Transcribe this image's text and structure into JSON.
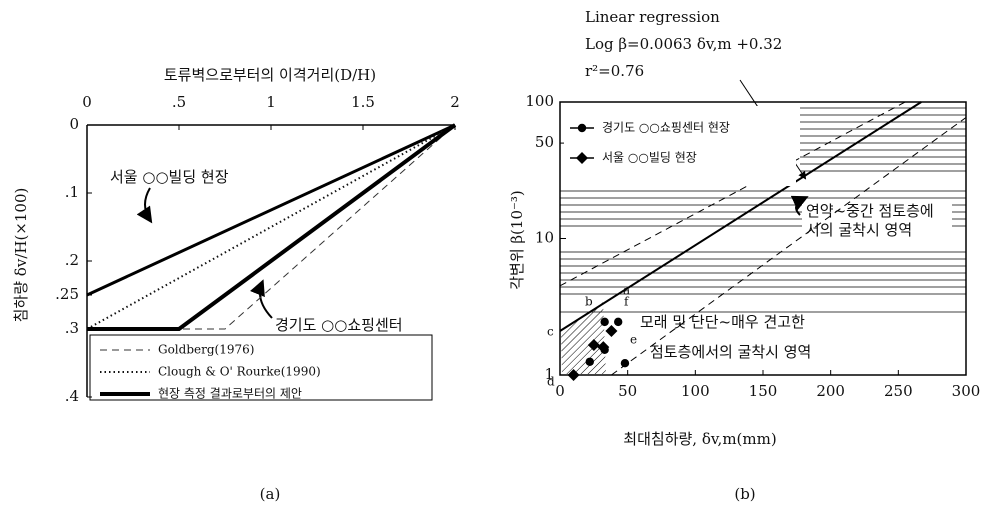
{
  "chart_data": [
    {
      "type": "line",
      "caption": "(a)",
      "xlabel": "토류벽으로부터의 이격거리(D/H)",
      "ylabel": "침하량 δv/H(×100)",
      "xlim": [
        0,
        2
      ],
      "ylim": [
        0,
        0.4
      ],
      "y_inverted": true,
      "xticks": [
        0,
        {
          "value": 0.5,
          "label": ".5"
        },
        1,
        1.5,
        2
      ],
      "yticks": [
        0,
        {
          "value": 0.1,
          "label": ".1"
        },
        {
          "value": 0.2,
          "label": ".2"
        },
        {
          "value": 0.25,
          "label": ".25"
        },
        {
          "value": 0.3,
          "label": ".3"
        },
        {
          "value": 0.4,
          "label": ".4"
        }
      ],
      "series": [
        {
          "name": "Goldberg(1976)",
          "color": "#333333",
          "style": "dashed",
          "x": [
            0,
            0.75,
            2
          ],
          "y": [
            0.3,
            0.3,
            0
          ]
        },
        {
          "name": "Clough & O' Rourke(1990)",
          "color": "#111111",
          "style": "dotted",
          "x": [
            0,
            2
          ],
          "y": [
            0.3,
            0
          ]
        },
        {
          "name": "현장 측정 결과로부터의 제안",
          "color": "#000000",
          "style": "thick",
          "x": [
            0,
            0.5,
            2
          ],
          "y": [
            0.3,
            0.3,
            0
          ]
        }
      ],
      "annotations": [
        {
          "text": "서울 ○○빌딩 현장",
          "x": [
            0,
            2
          ],
          "y": [
            0.25,
            0
          ]
        },
        {
          "text": "경기도 ○○쇼핑센터"
        }
      ]
    },
    {
      "type": "scatter",
      "caption": "(b)",
      "title_lines": [
        "Linear regression",
        "Log β=0.0063   δv,m +0.32",
        "r²=0.76"
      ],
      "xlabel": "최대침하량, δv,m(mm)",
      "ylabel": "각변위 β(10⁻³)",
      "xlim": [
        0,
        300
      ],
      "ylim": [
        1,
        100
      ],
      "log_y": true,
      "xticks": [
        0,
        50,
        100,
        150,
        200,
        250,
        300
      ],
      "yticks": [
        1,
        10,
        50,
        100
      ],
      "legend": "upper left",
      "series": [
        {
          "name": "경기도 ○○쇼핑센터 현장",
          "marker": "circle",
          "color": "#000000",
          "x": [
            33,
            33,
            43,
            48,
            22
          ],
          "y": [
            1.53,
            2.45,
            2.45,
            1.22,
            1.25
          ]
        },
        {
          "name": "서울 ○○빌딩 현장",
          "marker": "diamond",
          "color": "#000000",
          "x": [
            10,
            25,
            38,
            32
          ],
          "y": [
            1.0,
            1.66,
            2.1,
            1.6
          ]
        }
      ],
      "lines": [
        {
          "style": "solid",
          "x": [
            0,
            267
          ],
          "y": [
            2.1,
            100
          ]
        },
        {
          "style": "dashed",
          "x": [
            0,
            255
          ],
          "y": [
            4.5,
            100
          ]
        },
        {
          "style": "dashed",
          "x": [
            38,
            300
          ],
          "y": [
            1,
            77
          ]
        }
      ],
      "annotations": [
        "연약~중간 점토층에",
        "서의 굴착시 영역",
        "모래 및 단단~매우 견고한",
        "점토층에서의 굴착시 영역",
        "a",
        "b",
        "c",
        "d",
        "e",
        "f"
      ]
    }
  ]
}
